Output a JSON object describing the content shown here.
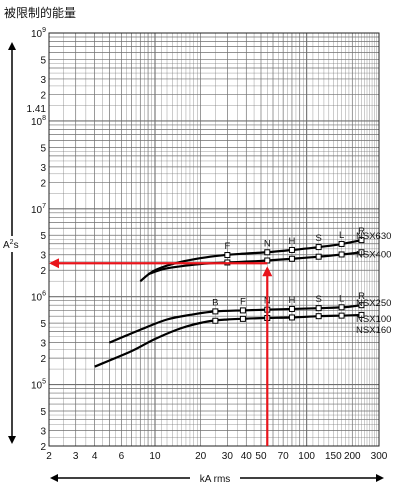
{
  "title": "被限制的能量",
  "chart_data": {
    "type": "line",
    "title": "被限制的能量",
    "xlabel": "kA rms",
    "ylabel": "A²s",
    "ylabel_base": "A",
    "ylabel_sup": "2",
    "ylabel_tail": "s",
    "x_scale": "log",
    "y_scale": "log",
    "xlim": [
      2,
      300
    ],
    "ylim": [
      20000,
      1000000000
    ],
    "grid": true,
    "x_ticks": [
      {
        "value": 2,
        "label": "2"
      },
      {
        "value": 3,
        "label": "3"
      },
      {
        "value": 4,
        "label": "4"
      },
      {
        "value": 6,
        "label": "6"
      },
      {
        "value": 10,
        "label": "10"
      },
      {
        "value": 20,
        "label": "20"
      },
      {
        "value": 30,
        "label": "30"
      },
      {
        "value": 40,
        "label": "40"
      },
      {
        "value": 50,
        "label": "50"
      },
      {
        "value": 70,
        "label": "70"
      },
      {
        "value": 100,
        "label": "100"
      },
      {
        "value": 150,
        "label": "150"
      },
      {
        "value": 200,
        "label": "200"
      },
      {
        "value": 300,
        "label": "300"
      }
    ],
    "y_ticks": [
      {
        "value": 1000000000,
        "base": "10",
        "exp": "9"
      },
      {
        "value": 500000000,
        "label": "5"
      },
      {
        "value": 300000000,
        "label": "3"
      },
      {
        "value": 200000000,
        "label": "2"
      },
      {
        "value": 141000000,
        "label": "1.41"
      },
      {
        "value": 100000000,
        "base": "10",
        "exp": "8"
      },
      {
        "value": 50000000,
        "label": "5"
      },
      {
        "value": 30000000,
        "label": "3"
      },
      {
        "value": 20000000,
        "label": "2"
      },
      {
        "value": 10000000,
        "base": "10",
        "exp": "7"
      },
      {
        "value": 5000000,
        "label": "5"
      },
      {
        "value": 3000000,
        "label": "3"
      },
      {
        "value": 2000000,
        "label": "2"
      },
      {
        "value": 1000000,
        "base": "10",
        "exp": "6"
      },
      {
        "value": 500000,
        "label": "5"
      },
      {
        "value": 300000,
        "label": "3"
      },
      {
        "value": 200000,
        "label": "2"
      },
      {
        "value": 100000,
        "base": "10",
        "exp": "5"
      },
      {
        "value": 50000,
        "label": "5"
      },
      {
        "value": 30000,
        "label": "3"
      },
      {
        "value": 20000,
        "label": "2"
      }
    ],
    "series": [
      {
        "name": "NSX630",
        "points": [
          [
            8,
            1500000
          ],
          [
            10,
            2000000
          ],
          [
            15,
            2500000
          ],
          [
            25,
            2900000
          ],
          [
            40,
            3100000
          ],
          [
            55,
            3200000
          ],
          [
            80,
            3400000
          ],
          [
            110,
            3600000
          ],
          [
            160,
            3900000
          ],
          [
            230,
            4400000
          ]
        ],
        "markers": [
          {
            "x": 30,
            "label": "F"
          },
          {
            "x": 55,
            "label": "N"
          },
          {
            "x": 80,
            "label": "H"
          },
          {
            "x": 120,
            "label": "S"
          },
          {
            "x": 170,
            "label": "L"
          },
          {
            "x": 230,
            "label": "R"
          }
        ]
      },
      {
        "name": "NSX400",
        "points": [
          [
            9,
            1800000
          ],
          [
            12,
            2100000
          ],
          [
            20,
            2350000
          ],
          [
            30,
            2450000
          ],
          [
            50,
            2550000
          ],
          [
            80,
            2700000
          ],
          [
            120,
            2850000
          ],
          [
            180,
            3050000
          ],
          [
            230,
            3200000
          ]
        ],
        "markers": [
          {
            "x": 30,
            "label": ""
          },
          {
            "x": 55,
            "label": ""
          },
          {
            "x": 80,
            "label": ""
          },
          {
            "x": 120,
            "label": ""
          },
          {
            "x": 170,
            "label": ""
          },
          {
            "x": 230,
            "label": ""
          }
        ]
      },
      {
        "name": "NSX250",
        "points": [
          [
            5,
            300000
          ],
          [
            8,
            420000
          ],
          [
            12,
            550000
          ],
          [
            18,
            630000
          ],
          [
            25,
            680000
          ],
          [
            40,
            700000
          ],
          [
            70,
            720000
          ],
          [
            120,
            740000
          ],
          [
            180,
            760000
          ],
          [
            230,
            800000
          ]
        ],
        "markers": [
          {
            "x": 25,
            "label": "B"
          },
          {
            "x": 38,
            "label": "F"
          },
          {
            "x": 55,
            "label": "N"
          },
          {
            "x": 80,
            "label": "H"
          },
          {
            "x": 120,
            "label": "S"
          },
          {
            "x": 170,
            "label": "L"
          },
          {
            "x": 230,
            "label": "R"
          }
        ]
      },
      {
        "name": "NSX100",
        "points": [
          [
            4,
            160000
          ],
          [
            7,
            240000
          ],
          [
            10,
            330000
          ],
          [
            15,
            440000
          ],
          [
            22,
            520000
          ],
          [
            30,
            550000
          ],
          [
            50,
            570000
          ],
          [
            80,
            580000
          ],
          [
            120,
            600000
          ],
          [
            180,
            610000
          ],
          [
            230,
            620000
          ]
        ],
        "markers": [
          {
            "x": 25,
            "label": ""
          },
          {
            "x": 38,
            "label": ""
          },
          {
            "x": 55,
            "label": ""
          },
          {
            "x": 80,
            "label": ""
          },
          {
            "x": 120,
            "label": ""
          },
          {
            "x": 170,
            "label": ""
          },
          {
            "x": 230,
            "label": ""
          }
        ]
      },
      {
        "name": "NSX160",
        "points": [],
        "markers": []
      }
    ],
    "annotation": {
      "x": 55,
      "y": 2400000,
      "color": "#e8141b"
    },
    "colors": {
      "curve": "#000000",
      "grid": "#6f6f6f",
      "annotation": "#e8141b"
    }
  }
}
